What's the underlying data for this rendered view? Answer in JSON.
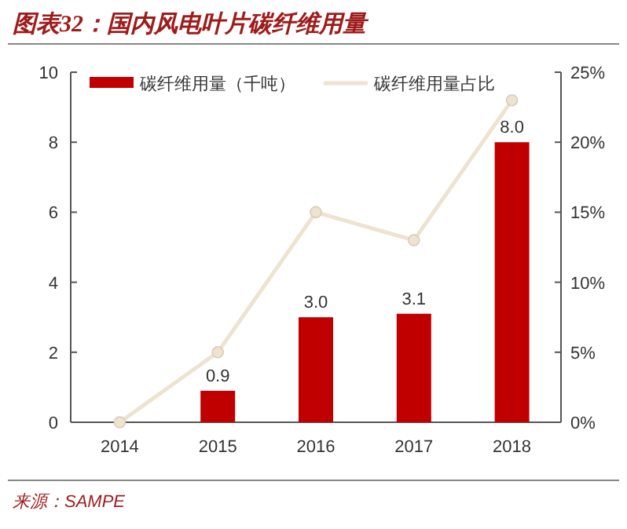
{
  "chart_data": {
    "type": "bar",
    "title": "图表32：国内风电叶片碳纤维用量",
    "categories": [
      "2014",
      "2015",
      "2016",
      "2017",
      "2018"
    ],
    "series": [
      {
        "name": "碳纤维用量（千吨）",
        "color": "#c00000",
        "values": [
          null,
          0.9,
          3.0,
          3.1,
          8.0
        ],
        "value_labels": [
          null,
          "0.9",
          "3.0",
          "3.1",
          "8.0"
        ]
      },
      {
        "name": "碳纤维用量占比",
        "type": "line",
        "axis": "y2",
        "color": "#eee3d0",
        "marker": "circle",
        "values": [
          0,
          5,
          15,
          13,
          23
        ]
      }
    ],
    "ylim": [
      0,
      10
    ],
    "yticks": [
      0,
      2,
      4,
      6,
      8,
      10
    ],
    "y2lim": [
      0,
      25
    ],
    "y2ticks": [
      {
        "value": 0,
        "label": "0%"
      },
      {
        "value": 5,
        "label": "5%"
      },
      {
        "value": 10,
        "label": "10%"
      },
      {
        "value": 15,
        "label": "15%"
      },
      {
        "value": 20,
        "label": "20%"
      },
      {
        "value": 25,
        "label": "25%"
      }
    ],
    "legend": "top",
    "grid": false,
    "annotations": [
      "来源：SAMPE"
    ]
  }
}
